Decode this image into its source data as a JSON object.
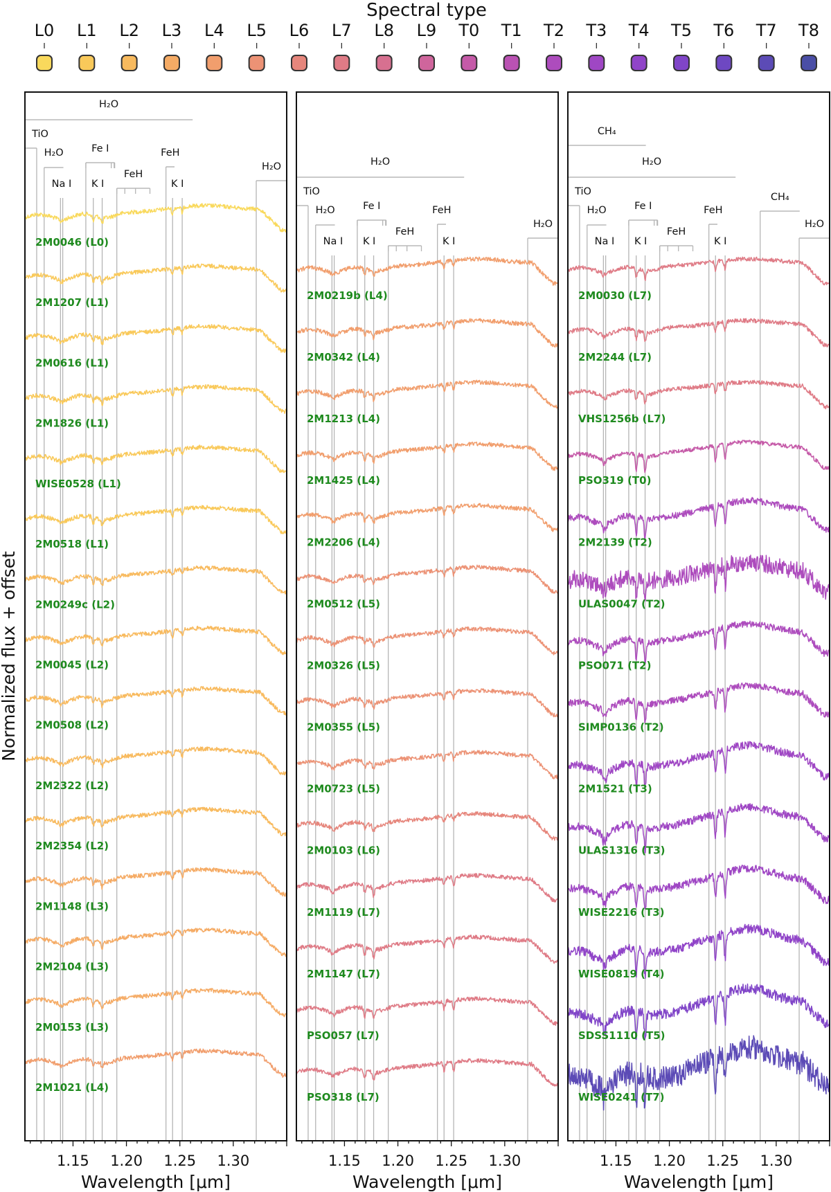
{
  "chart_data": {
    "type": "line",
    "figure_title": "Spectral type",
    "ylabel": "Normalized flux + offset",
    "xlabel": "Wavelength [μm]",
    "xlim": [
      1.105,
      1.35
    ],
    "xticks": [
      1.15,
      1.2,
      1.25,
      1.3
    ],
    "xtick_labels": [
      "1.15",
      "1.20",
      "1.25",
      "1.30"
    ],
    "spectral_types": [
      {
        "label": "L0",
        "color": "#f9d95c"
      },
      {
        "label": "L1",
        "color": "#f9c95a"
      },
      {
        "label": "L2",
        "color": "#f8ba5e"
      },
      {
        "label": "L3",
        "color": "#f5ab65"
      },
      {
        "label": "L4",
        "color": "#f19e6d"
      },
      {
        "label": "L5",
        "color": "#ec9275"
      },
      {
        "label": "L6",
        "color": "#e6867c"
      },
      {
        "label": "L7",
        "color": "#df7b86"
      },
      {
        "label": "L8",
        "color": "#d77090"
      },
      {
        "label": "L9",
        "color": "#cf659c"
      },
      {
        "label": "T0",
        "color": "#c55aa8"
      },
      {
        "label": "T1",
        "color": "#ba52b3"
      },
      {
        "label": "T2",
        "color": "#ad4cbd"
      },
      {
        "label": "T3",
        "color": "#9f47c4"
      },
      {
        "label": "T4",
        "color": "#9044c8"
      },
      {
        "label": "T5",
        "color": "#8045c8"
      },
      {
        "label": "T6",
        "color": "#6e48c2"
      },
      {
        "label": "T7",
        "color": "#5c4bb6"
      },
      {
        "label": "T8",
        "color": "#4a4ea6"
      }
    ],
    "panels": [
      {
        "objects": [
          {
            "name": "2M0046 (L0)",
            "sptype": "L0"
          },
          {
            "name": "2M1207 (L1)",
            "sptype": "L1"
          },
          {
            "name": "2M0616 (L1)",
            "sptype": "L1"
          },
          {
            "name": "2M1826 (L1)",
            "sptype": "L1"
          },
          {
            "name": "WISE0528 (L1)",
            "sptype": "L1"
          },
          {
            "name": "2M0518 (L1)",
            "sptype": "L1"
          },
          {
            "name": "2M0249c (L2)",
            "sptype": "L2"
          },
          {
            "name": "2M0045 (L2)",
            "sptype": "L2"
          },
          {
            "name": "2M0508 (L2)",
            "sptype": "L2"
          },
          {
            "name": "2M2322 (L2)",
            "sptype": "L2"
          },
          {
            "name": "2M2354 (L2)",
            "sptype": "L2"
          },
          {
            "name": "2M1148 (L3)",
            "sptype": "L3"
          },
          {
            "name": "2M2104 (L3)",
            "sptype": "L3"
          },
          {
            "name": "2M0153 (L3)",
            "sptype": "L3"
          },
          {
            "name": "2M1021 (L4)",
            "sptype": "L4"
          }
        ]
      },
      {
        "objects": [
          {
            "name": "2M0219b (L4)",
            "sptype": "L4"
          },
          {
            "name": "2M0342 (L4)",
            "sptype": "L4"
          },
          {
            "name": "2M1213 (L4)",
            "sptype": "L4"
          },
          {
            "name": "2M1425 (L4)",
            "sptype": "L4"
          },
          {
            "name": "2M2206 (L4)",
            "sptype": "L4"
          },
          {
            "name": "2M0512 (L5)",
            "sptype": "L5"
          },
          {
            "name": "2M0326 (L5)",
            "sptype": "L5"
          },
          {
            "name": "2M0355 (L5)",
            "sptype": "L5"
          },
          {
            "name": "2M0723 (L5)",
            "sptype": "L5"
          },
          {
            "name": "2M0103 (L6)",
            "sptype": "L6"
          },
          {
            "name": "2M1119 (L7)",
            "sptype": "L7"
          },
          {
            "name": "2M1147 (L7)",
            "sptype": "L7"
          },
          {
            "name": "PSO057 (L7)",
            "sptype": "L7"
          },
          {
            "name": "PSO318 (L7)",
            "sptype": "L7"
          }
        ]
      },
      {
        "objects": [
          {
            "name": "2M0030 (L7)",
            "sptype": "L7"
          },
          {
            "name": "2M2244 (L7)",
            "sptype": "L7"
          },
          {
            "name": "VHS1256b (L7)",
            "sptype": "L7"
          },
          {
            "name": "PSO319 (T0)",
            "sptype": "T0"
          },
          {
            "name": "2M2139 (T2)",
            "sptype": "T2"
          },
          {
            "name": "ULAS0047 (T2)",
            "sptype": "T2"
          },
          {
            "name": "PSO071 (T2)",
            "sptype": "T2"
          },
          {
            "name": "SIMP0136 (T2)",
            "sptype": "T2"
          },
          {
            "name": "2M1521 (T3)",
            "sptype": "T3"
          },
          {
            "name": "ULAS1316 (T3)",
            "sptype": "T3"
          },
          {
            "name": "WISE2216 (T3)",
            "sptype": "T3"
          },
          {
            "name": "WISE0819 (T4)",
            "sptype": "T4"
          },
          {
            "name": "SDSS1110 (T5)",
            "sptype": "T5"
          },
          {
            "name": "WISE0241 (T7)",
            "sptype": "T7"
          }
        ]
      }
    ],
    "annotations": {
      "common": [
        {
          "label": "H₂O",
          "x0": 1.105,
          "x1": 1.262,
          "vlines": []
        },
        {
          "label": "TiO",
          "x0": 1.105,
          "x1": 1.116,
          "vlines": [
            1.116
          ]
        },
        {
          "label": "H₂O",
          "x0": 1.123,
          "x1": 1.141,
          "vlines": [
            1.123
          ]
        },
        {
          "label": "Fe I",
          "x0": 1.162,
          "x1": 1.189,
          "vlines": [
            1.162,
            1.1858,
            1.1885,
            1.189
          ]
        },
        {
          "label": "FeH",
          "x0": 1.191,
          "x1": 1.222,
          "vlines": [
            1.191,
            1.1985,
            1.2085,
            1.222
          ]
        },
        {
          "label": "Na I",
          "x0": 1.1383,
          "x1": 1.1404,
          "vlines": [
            1.1383,
            1.1404
          ]
        },
        {
          "label": "K I",
          "x0": 1.169,
          "x1": 1.1773,
          "vlines": [
            1.169,
            1.1773
          ]
        },
        {
          "label": "FeH",
          "x0": 1.237,
          "x1": 1.245,
          "vlines": [
            1.237
          ]
        },
        {
          "label": "K I",
          "x0": 1.2432,
          "x1": 1.2522,
          "vlines": [
            1.2432,
            1.2522
          ]
        },
        {
          "label": "H₂O",
          "x0": 1.3215,
          "x1": 1.35,
          "vlines": [
            1.3215
          ]
        }
      ],
      "t_extra": [
        {
          "label": "CH₄",
          "x0": 1.105,
          "x1": 1.178,
          "vlines": []
        },
        {
          "label": "CH₄",
          "x0": 1.285,
          "x1": 1.322,
          "vlines": [
            1.285
          ]
        }
      ]
    }
  }
}
